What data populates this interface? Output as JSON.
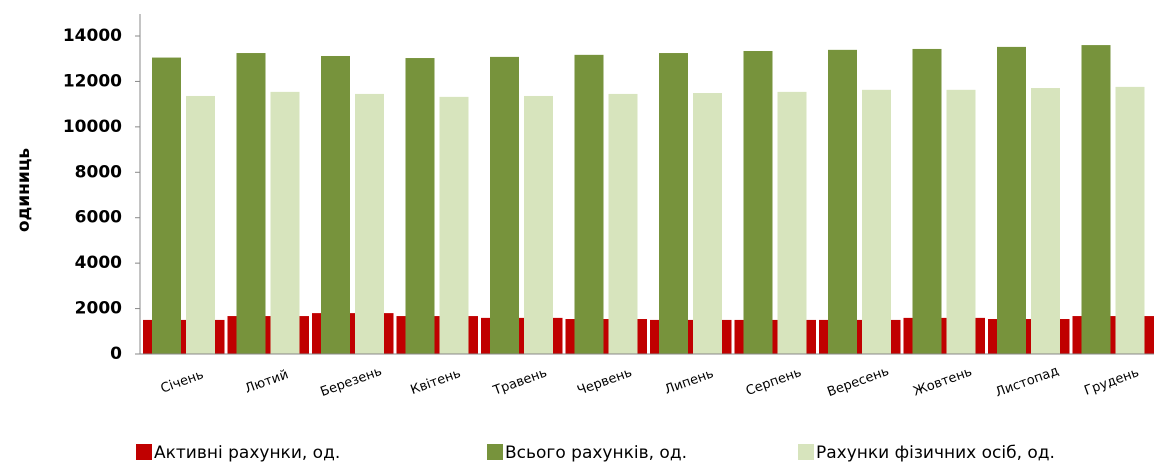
{
  "chart_data": {
    "type": "bar",
    "y_label": "одиниць",
    "categories": [
      "Січень",
      "Лютий",
      "Березень",
      "Квітень",
      "Травень",
      "Червень",
      "Липень",
      "Серпень",
      "Вересень",
      "Жовтень",
      "Листопад",
      "Грудень"
    ],
    "series": [
      {
        "name": "Активні рахунки, од.",
        "color": "#c00000",
        "values": [
          1500,
          1670,
          1800,
          1670,
          1590,
          1540,
          1500,
          1500,
          1500,
          1590,
          1540,
          1670
        ]
      },
      {
        "name": "Всього рахунків, од.",
        "color": "#77933c",
        "values": [
          13050,
          13250,
          13120,
          13030,
          13080,
          13170,
          13250,
          13340,
          13390,
          13430,
          13520,
          13600
        ]
      },
      {
        "name": "Рахунки фізичних осіб, од.",
        "color": "#d7e4bd",
        "values": [
          11360,
          11540,
          11450,
          11320,
          11360,
          11450,
          11490,
          11540,
          11630,
          11630,
          11710,
          11760
        ]
      }
    ],
    "ylim": [
      0,
      14000
    ],
    "yticks": [
      0,
      2000,
      4000,
      6000,
      8000,
      10000,
      12000,
      14000
    ]
  }
}
